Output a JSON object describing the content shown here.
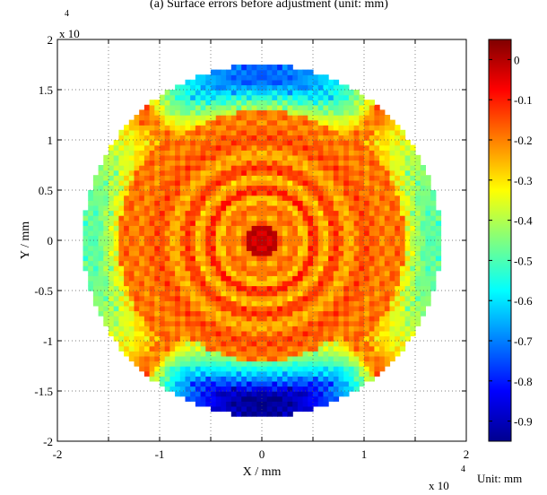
{
  "chart_data": {
    "type": "heatmap",
    "title": "(a) Surface errors before adjustment (unit: mm)",
    "xlabel": "X / mm",
    "ylabel": "Y / mm",
    "x_exponent_label": "x 10",
    "x_exponent_power": "4",
    "y_exponent_label": "x 10",
    "y_exponent_power": "4",
    "xlim": [
      -2,
      2
    ],
    "ylim": [
      -2,
      2
    ],
    "x_ticks": [
      "-2",
      "-1.5",
      "-1",
      "-0.5",
      "0",
      "0.5",
      "1",
      "1.5",
      "2"
    ],
    "x_tick_labels_shown": [
      "-2",
      "-1",
      "0",
      "1",
      "2"
    ],
    "y_tick_labels_shown": [
      "-2",
      "-1.5",
      "-1",
      "-0.5",
      "0",
      "0.5",
      "1",
      "1.5",
      "2"
    ],
    "grid": true,
    "grid_style": "dotted",
    "aperture_radius": 1.75,
    "colorbar": {
      "range": [
        -0.95,
        0.05
      ],
      "ticks": [
        "0",
        "-0.1",
        "-0.2",
        "-0.3",
        "-0.4",
        "-0.5",
        "-0.6",
        "-0.7",
        "-0.8",
        "-0.9"
      ],
      "unit_label": "Unit: mm",
      "colormap": "jet"
    },
    "radial_profile": [
      {
        "r": 0.0,
        "v": 0.0
      },
      {
        "r": 0.12,
        "v": -0.02
      },
      {
        "r": 0.22,
        "v": -0.25
      },
      {
        "r": 0.32,
        "v": -0.15
      },
      {
        "r": 0.42,
        "v": -0.28
      },
      {
        "r": 0.5,
        "v": -0.1
      },
      {
        "r": 0.62,
        "v": -0.27
      },
      {
        "r": 0.72,
        "v": -0.12
      },
      {
        "r": 0.85,
        "v": -0.25
      },
      {
        "r": 1.0,
        "v": -0.15
      },
      {
        "r": 1.2,
        "v": -0.2
      },
      {
        "r": 1.35,
        "v": -0.18
      },
      {
        "r": 1.5,
        "v": -0.22
      },
      {
        "r": 1.75,
        "v": -0.18
      }
    ],
    "edge_regions": [
      {
        "location": "top",
        "angle_range_deg": [
          50,
          130
        ],
        "r_start": 1.3,
        "min_value": -0.65
      },
      {
        "location": "bottom",
        "angle_range_deg": [
          230,
          310
        ],
        "r_start": 1.2,
        "min_value": -0.9
      },
      {
        "location": "left",
        "angle_range_deg": [
          135,
          225
        ],
        "r_start": 1.4,
        "min_value": -0.35
      },
      {
        "location": "right",
        "angle_range_deg": [
          -45,
          45
        ],
        "r_start": 1.4,
        "min_value": -0.35
      }
    ]
  }
}
